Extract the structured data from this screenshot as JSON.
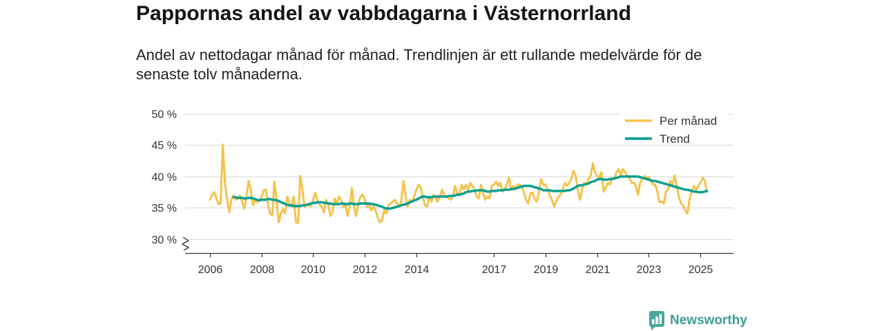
{
  "chart_data": {
    "type": "line",
    "title": "Pappornas andel av vabbdagarna i Västernorrland",
    "subtitle": "Andel av nettodagar månad för månad. Trendlinjen är ett rullande medelvärde för de senaste tolv månaderna.",
    "xlim": [
      2005.04,
      2026.28
    ],
    "ylim": [
      27.8,
      50
    ],
    "y_axis_break": true,
    "grid": true,
    "legend_position": "top-right",
    "yticks": [
      30,
      35,
      40,
      45,
      50
    ],
    "ytick_labels": [
      "30 %",
      "35 %",
      "40 %",
      "45 %",
      "50 %"
    ],
    "xticks": [
      2006,
      2008,
      2010,
      2012,
      2014,
      2017,
      2019,
      2021,
      2023,
      2025
    ],
    "xtick_labels": [
      "2006",
      "2008",
      "2010",
      "2012",
      "2014",
      "2017",
      "2019",
      "2021",
      "2023",
      "2025"
    ],
    "series": [
      {
        "name": "Per månad",
        "color": "#f5c24a",
        "start_year": 2006,
        "start_month": 1,
        "values": [
          36.3,
          37.0,
          37.5,
          36.6,
          35.6,
          35.7,
          45.1,
          39.0,
          36.3,
          34.3,
          36.3,
          37.0,
          36.3,
          36.5,
          37.0,
          36.0,
          34.9,
          36.8,
          39.3,
          37.9,
          35.4,
          36.3,
          35.9,
          36.3,
          36.7,
          37.8,
          37.9,
          35.7,
          34.1,
          33.8,
          39.2,
          36.3,
          32.7,
          34.1,
          34.8,
          34.1,
          36.8,
          35.7,
          35.2,
          36.8,
          32.7,
          32.6,
          40.1,
          38.0,
          35.2,
          35.5,
          35.4,
          35.3,
          36.3,
          37.4,
          36.3,
          35.5,
          35.2,
          34.3,
          36.3,
          35.7,
          33.7,
          34.3,
          36.5,
          35.7,
          36.8,
          36.3,
          35.2,
          35.4,
          33.7,
          35.2,
          38.2,
          35.2,
          33.7,
          35.7,
          36.8,
          37.1,
          36.3,
          35.2,
          35.4,
          34.6,
          35.2,
          34.6,
          33.5,
          32.7,
          33.0,
          34.6,
          34.1,
          35.4,
          35.7,
          36.0,
          36.3,
          35.7,
          35.2,
          36.3,
          39.3,
          36.8,
          35.2,
          36.3,
          36.0,
          36.8,
          37.9,
          38.7,
          38.2,
          36.8,
          35.4,
          35.2,
          36.8,
          36.0,
          37.1,
          36.5,
          36.0,
          37.0,
          37.9,
          37.0,
          36.8,
          36.5,
          36.3,
          36.8,
          38.5,
          37.4,
          37.0,
          38.7,
          37.9,
          38.7,
          37.9,
          39.0,
          38.5,
          37.9,
          36.8,
          36.5,
          38.7,
          37.4,
          36.3,
          36.8,
          36.5,
          38.5,
          38.7,
          39.2,
          38.5,
          39.0,
          37.6,
          37.9,
          38.7,
          39.8,
          37.9,
          38.5,
          37.9,
          38.7,
          38.7,
          38.5,
          37.4,
          36.3,
          35.7,
          37.4,
          37.4,
          36.3,
          36.0,
          37.6,
          39.6,
          38.7,
          38.7,
          37.9,
          37.0,
          36.3,
          35.2,
          36.0,
          36.8,
          37.1,
          37.9,
          39.0,
          38.5,
          39.0,
          39.6,
          40.9,
          40.1,
          37.9,
          36.3,
          37.9,
          39.0,
          38.7,
          39.6,
          40.1,
          42.1,
          40.7,
          40.1,
          39.8,
          40.7,
          37.6,
          38.2,
          39.0,
          38.7,
          39.8,
          39.6,
          40.7,
          41.2,
          40.1,
          41.2,
          40.7,
          40.1,
          39.8,
          39.0,
          39.0,
          38.5,
          37.1,
          39.0,
          39.6,
          40.1,
          39.8,
          39.9,
          39.3,
          38.7,
          38.7,
          37.6,
          35.9,
          36.0,
          35.7,
          37.6,
          37.9,
          39.3,
          38.7,
          40.2,
          38.5,
          36.8,
          35.7,
          35.4,
          34.6,
          34.1,
          36.5,
          37.6,
          38.5,
          37.9,
          38.5,
          39.0,
          39.8,
          39.3,
          37.6
        ]
      },
      {
        "name": "Trend",
        "color": "#10a090",
        "start_year": 2006,
        "start_month": 12,
        "values": [
          36.7,
          36.7,
          36.6,
          36.6,
          36.6,
          36.5,
          36.5,
          36.6,
          36.6,
          36.5,
          36.4,
          36.3,
          36.2,
          36.3,
          36.3,
          36.3,
          36.4,
          36.4,
          36.3,
          36.3,
          36.2,
          36.1,
          35.9,
          35.8,
          35.6,
          35.5,
          35.4,
          35.4,
          35.3,
          35.3,
          35.3,
          35.3,
          35.4,
          35.4,
          35.5,
          35.6,
          35.7,
          35.8,
          35.8,
          35.9,
          35.9,
          35.9,
          35.8,
          35.8,
          35.7,
          35.7,
          35.6,
          35.6,
          35.6,
          35.6,
          35.7,
          35.7,
          35.6,
          35.6,
          35.7,
          35.7,
          35.6,
          35.6,
          35.6,
          35.7,
          35.7,
          35.7,
          35.7,
          35.7,
          35.6,
          35.6,
          35.5,
          35.4,
          35.3,
          35.2,
          35.0,
          34.9,
          34.9,
          34.9,
          35.0,
          35.1,
          35.2,
          35.3,
          35.4,
          35.5,
          35.6,
          35.7,
          35.9,
          36.0,
          36.2,
          36.3,
          36.5,
          36.7,
          36.8,
          36.8,
          36.7,
          36.7,
          36.7,
          36.8,
          36.8,
          36.8,
          36.8,
          36.8,
          36.8,
          36.8,
          36.9,
          36.9,
          36.9,
          37.0,
          37.1,
          37.1,
          37.2,
          37.3,
          37.5,
          37.6,
          37.6,
          37.7,
          37.7,
          37.8,
          37.8,
          37.8,
          37.8,
          37.7,
          37.6,
          37.6,
          37.7,
          37.7,
          37.7,
          37.8,
          37.8,
          37.8,
          37.9,
          37.9,
          37.9,
          38.0,
          38.0,
          38.1,
          38.2,
          38.3,
          38.4,
          38.5,
          38.5,
          38.5,
          38.5,
          38.4,
          38.3,
          38.2,
          38.1,
          38.0,
          37.8,
          37.8,
          37.8,
          37.8,
          37.7,
          37.7,
          37.7,
          37.7,
          37.7,
          37.7,
          37.7,
          37.8,
          37.8,
          37.9,
          38.1,
          38.3,
          38.5,
          38.6,
          38.6,
          38.7,
          38.8,
          38.9,
          39.1,
          39.2,
          39.3,
          39.5,
          39.6,
          39.6,
          39.5,
          39.5,
          39.5,
          39.6,
          39.6,
          39.7,
          39.8,
          39.9,
          40.0,
          40.0,
          40.0,
          40.0,
          40.0,
          40.0,
          40.0,
          40.0,
          40.0,
          39.9,
          39.8,
          39.7,
          39.6,
          39.5,
          39.4,
          39.3,
          39.3,
          39.2,
          39.1,
          39.0,
          38.9,
          38.8,
          38.7,
          38.6,
          38.5,
          38.4,
          38.3,
          38.2,
          38.1,
          38.0,
          37.9,
          37.9,
          37.8,
          37.7,
          37.6,
          37.6,
          37.5,
          37.5,
          37.5,
          37.6,
          37.7
        ]
      }
    ]
  },
  "branding": {
    "name": "Newsworthy",
    "icon": "newsworthy-logo-icon",
    "color": "#4aa79c"
  }
}
